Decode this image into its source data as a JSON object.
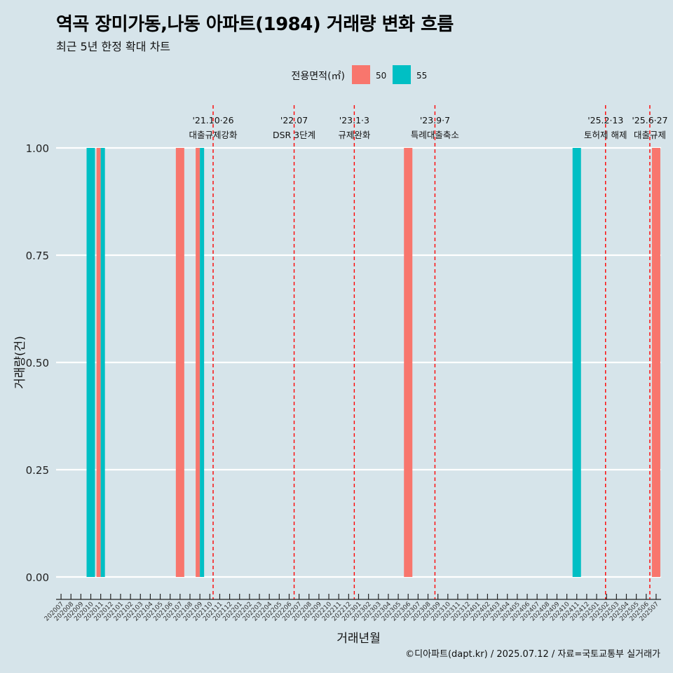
{
  "title": "역곡 장미가동,나동 아파트(1984) 거래량 변화 흐름",
  "subtitle": "최근 5년 한정 확대 차트",
  "caption": "©디아파트(dapt.kr) / 2025.07.12 / 자료=국토교통부 실거래가",
  "colors": {
    "background": "#d6e4ea",
    "area50": "#f8766d",
    "area55": "#00bfc4",
    "event_line": "#ff0000",
    "grid": "#ffffff"
  },
  "chart_data": {
    "type": "bar",
    "xlabel": "거래년월",
    "ylabel": "거래량(건)",
    "ylim": [
      0,
      1
    ],
    "yticks": [
      "0.00",
      "0.25",
      "0.50",
      "0.75",
      "1.00"
    ],
    "legend": {
      "title": "전용면적(㎡)",
      "position": "top"
    },
    "categories": [
      "202007",
      "202008",
      "202009",
      "202010",
      "202011",
      "202012",
      "202101",
      "202102",
      "202103",
      "202104",
      "202105",
      "202106",
      "202107",
      "202108",
      "202109",
      "202110",
      "202111",
      "202112",
      "202201",
      "202202",
      "202203",
      "202204",
      "202205",
      "202206",
      "202207",
      "202208",
      "202209",
      "202210",
      "202211",
      "202212",
      "202301",
      "202302",
      "202303",
      "202304",
      "202305",
      "202306",
      "202307",
      "202308",
      "202309",
      "202310",
      "202311",
      "202312",
      "202401",
      "202402",
      "202403",
      "202404",
      "202405",
      "202406",
      "202407",
      "202408",
      "202409",
      "202410",
      "202411",
      "202412",
      "202501",
      "202502",
      "202503",
      "202504",
      "202505",
      "202506",
      "202507"
    ],
    "series": [
      {
        "name": "50",
        "color": "#f8766d",
        "data": [
          {
            "x": "202011",
            "y": 1
          },
          {
            "x": "202107",
            "y": 1
          },
          {
            "x": "202109",
            "y": 1
          },
          {
            "x": "202306",
            "y": 1
          },
          {
            "x": "202507",
            "y": 1
          }
        ]
      },
      {
        "name": "55",
        "color": "#00bfc4",
        "data": [
          {
            "x": "202010",
            "y": 1
          },
          {
            "x": "202011",
            "y": 1
          },
          {
            "x": "202109",
            "y": 1
          },
          {
            "x": "202411",
            "y": 1
          }
        ]
      }
    ],
    "events": [
      {
        "date": "'21.10·26",
        "label": "대출규제강화",
        "x": "202110",
        "day": 26
      },
      {
        "date": "'22.07",
        "label": "DSR 3단계",
        "x": "202207",
        "day": 1
      },
      {
        "date": "'23.1·3",
        "label": "규제완화",
        "x": "202301",
        "day": 3
      },
      {
        "date": "'23.9·7",
        "label": "특례대출축소",
        "x": "202309",
        "day": 7
      },
      {
        "date": "'25.2·13",
        "label": "토허제 해제",
        "x": "202502",
        "day": 13
      },
      {
        "date": "'25.6·27",
        "label": "대출규제",
        "x": "202506",
        "day": 27
      }
    ]
  }
}
